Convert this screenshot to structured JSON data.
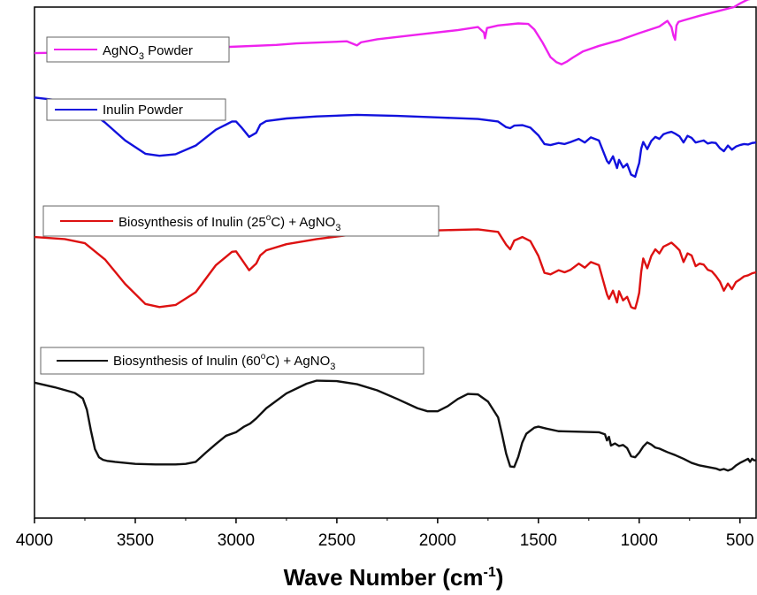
{
  "chart_data": {
    "type": "line",
    "xlabel": "Wave Number (cm-1)",
    "xlabel_main": "Wave Number (cm",
    "xlabel_sup": "-1",
    "xlabel_close": ")",
    "xlim": [
      4000,
      420
    ],
    "x_reversed": true,
    "y_ticks_shown": false,
    "xticks": [
      4000,
      3500,
      3000,
      2500,
      2000,
      1500,
      1000,
      500
    ],
    "xtick_labels": [
      "4000",
      "3500",
      "3000",
      "2500",
      "2000",
      "1500",
      "1000",
      "500"
    ],
    "ylim": [
      0,
      100
    ],
    "grid": false,
    "legend_placement": "each label boxed at left above its curve",
    "series": [
      {
        "name": "AgNO3 Powder",
        "legend": {
          "main": "AgNO",
          "sub": "3",
          "rest": " Powder"
        },
        "color": "#ee22ee",
        "x": [
          4000,
          3700,
          3400,
          3100,
          2800,
          2700,
          2450,
          2400,
          2380,
          2300,
          2100,
          1900,
          1800,
          1770,
          1765,
          1755,
          1700,
          1600,
          1550,
          1520,
          1480,
          1440,
          1410,
          1385,
          1360,
          1330,
          1280,
          1200,
          1100,
          1000,
          900,
          860,
          840,
          830,
          822,
          815,
          805,
          780,
          700,
          600,
          530,
          500,
          460,
          420
        ],
        "y": [
          91.0,
          91.2,
          91.6,
          92.1,
          92.6,
          92.9,
          93.3,
          92.5,
          93.1,
          93.7,
          94.6,
          95.5,
          96.1,
          95.0,
          93.9,
          95.9,
          96.4,
          96.8,
          96.7,
          95.6,
          93.1,
          90.2,
          89.2,
          88.8,
          89.3,
          90.1,
          91.3,
          92.4,
          93.5,
          94.9,
          96.2,
          97.3,
          96.1,
          94.4,
          93.6,
          96.4,
          97.1,
          97.4,
          98.3,
          99.3,
          100.0,
          100.7,
          101.5,
          101.8
        ]
      },
      {
        "name": "Inulin Powder",
        "legend": {
          "main": "Inulin Powder",
          "sub": "",
          "rest": ""
        },
        "color": "#1111dd",
        "x": [
          4000,
          3850,
          3750,
          3650,
          3550,
          3450,
          3380,
          3300,
          3200,
          3100,
          3020,
          3000,
          2970,
          2935,
          2900,
          2880,
          2850,
          2750,
          2600,
          2400,
          2200,
          2000,
          1800,
          1700,
          1660,
          1640,
          1620,
          1580,
          1540,
          1500,
          1470,
          1440,
          1400,
          1370,
          1340,
          1300,
          1270,
          1240,
          1200,
          1160,
          1150,
          1130,
          1110,
          1100,
          1080,
          1060,
          1040,
          1030,
          1020,
          1010,
          1000,
          990,
          980,
          960,
          940,
          920,
          900,
          880,
          860,
          840,
          820,
          800,
          780,
          760,
          740,
          720,
          700,
          680,
          660,
          640,
          620,
          600,
          580,
          560,
          540,
          520,
          500,
          480,
          460,
          440,
          420
        ],
        "y": [
          82.3,
          81.6,
          80.3,
          77.4,
          73.9,
          71.3,
          70.9,
          71.2,
          72.9,
          76.0,
          77.6,
          77.6,
          76.3,
          74.6,
          75.4,
          77.0,
          77.7,
          78.2,
          78.6,
          78.9,
          78.7,
          78.4,
          78.1,
          77.6,
          76.5,
          76.3,
          76.8,
          76.9,
          76.4,
          74.9,
          73.2,
          73.0,
          73.4,
          73.2,
          73.6,
          74.2,
          73.5,
          74.5,
          73.9,
          69.9,
          69.4,
          70.8,
          68.5,
          70.1,
          68.6,
          69.3,
          67.2,
          67.0,
          66.8,
          68.2,
          69.5,
          72.3,
          73.6,
          72.2,
          73.8,
          74.6,
          74.2,
          75.1,
          75.4,
          75.6,
          75.2,
          74.7,
          73.5,
          74.8,
          74.4,
          73.5,
          73.7,
          73.9,
          73.3,
          73.5,
          73.4,
          72.4,
          71.8,
          72.9,
          72.1,
          72.7,
          73.0,
          73.2,
          73.1,
          73.4,
          73.5
        ]
      },
      {
        "name": "Biosynthesis of Inulin (25°C) + AgNO3",
        "legend": {
          "main": "Biosynthesis of Inulin (25",
          "sup": "o",
          "after_sup": "C) + AgNO",
          "sub": "3"
        },
        "color": "#dd1111",
        "x": [
          4000,
          3850,
          3750,
          3650,
          3550,
          3450,
          3380,
          3300,
          3200,
          3100,
          3020,
          3000,
          2970,
          2935,
          2900,
          2880,
          2850,
          2750,
          2600,
          2400,
          2200,
          2000,
          1800,
          1700,
          1660,
          1640,
          1620,
          1580,
          1540,
          1500,
          1470,
          1440,
          1400,
          1370,
          1340,
          1300,
          1270,
          1240,
          1200,
          1160,
          1150,
          1130,
          1110,
          1100,
          1080,
          1060,
          1040,
          1030,
          1020,
          1010,
          1000,
          990,
          980,
          960,
          940,
          920,
          900,
          880,
          860,
          840,
          820,
          800,
          780,
          760,
          740,
          720,
          700,
          680,
          660,
          640,
          620,
          600,
          580,
          560,
          540,
          520,
          500,
          480,
          460,
          440,
          420
        ],
        "y": [
          55.0,
          54.6,
          53.8,
          50.6,
          45.8,
          41.9,
          41.3,
          41.7,
          44.2,
          49.5,
          52.1,
          52.2,
          50.5,
          48.5,
          49.8,
          51.4,
          52.4,
          53.6,
          54.6,
          55.6,
          56.1,
          56.3,
          56.5,
          56.0,
          53.5,
          52.6,
          54.3,
          55.0,
          54.2,
          51.3,
          48.0,
          47.7,
          48.5,
          48.1,
          48.6,
          49.8,
          49.0,
          50.1,
          49.5,
          43.8,
          42.9,
          44.5,
          42.2,
          44.4,
          42.6,
          43.3,
          41.3,
          41.1,
          41.0,
          42.4,
          44.1,
          48.2,
          50.8,
          48.9,
          51.3,
          52.6,
          51.8,
          53.1,
          53.5,
          53.9,
          53.2,
          52.4,
          50.1,
          51.8,
          51.4,
          49.3,
          49.8,
          49.6,
          48.6,
          48.3,
          47.4,
          46.3,
          44.5,
          45.9,
          44.8,
          46.2,
          46.7,
          47.3,
          47.5,
          47.9,
          48.1
        ]
      },
      {
        "name": "Biosynthesis of Inulin (60°C) + AgNO3",
        "legend": {
          "main": "Biosynthesis of Inulin (60",
          "sup": "o",
          "after_sup": "C) + AgNO",
          "sub": "3"
        },
        "color": "#111111",
        "x": [
          4000,
          3900,
          3800,
          3760,
          3740,
          3720,
          3700,
          3680,
          3660,
          3640,
          3600,
          3500,
          3400,
          3300,
          3250,
          3200,
          3150,
          3100,
          3050,
          3000,
          2960,
          2930,
          2900,
          2850,
          2750,
          2650,
          2600,
          2500,
          2400,
          2300,
          2200,
          2100,
          2050,
          2000,
          1950,
          1900,
          1850,
          1800,
          1750,
          1700,
          1680,
          1660,
          1640,
          1620,
          1600,
          1580,
          1560,
          1520,
          1500,
          1460,
          1400,
          1300,
          1200,
          1170,
          1160,
          1150,
          1140,
          1120,
          1100,
          1080,
          1060,
          1040,
          1020,
          1000,
          980,
          960,
          940,
          920,
          900,
          860,
          820,
          780,
          740,
          700,
          660,
          620,
          600,
          580,
          560,
          540,
          520,
          500,
          480,
          460,
          450,
          440,
          430,
          420
        ],
        "y": [
          26.5,
          25.6,
          24.5,
          23.4,
          21.2,
          17.1,
          13.5,
          11.9,
          11.4,
          11.2,
          11.0,
          10.6,
          10.5,
          10.5,
          10.6,
          11.0,
          12.8,
          14.5,
          16.1,
          16.8,
          17.9,
          18.5,
          19.5,
          21.5,
          24.4,
          26.3,
          26.9,
          26.8,
          26.2,
          25.0,
          23.3,
          21.5,
          20.9,
          20.9,
          21.9,
          23.3,
          24.3,
          24.2,
          22.8,
          19.7,
          16.3,
          12.6,
          10.1,
          10.0,
          12.0,
          14.8,
          16.5,
          17.7,
          17.9,
          17.5,
          17.0,
          16.9,
          16.8,
          16.4,
          15.2,
          15.9,
          14.2,
          14.6,
          14.1,
          14.3,
          13.7,
          12.1,
          11.9,
          12.8,
          14.0,
          14.8,
          14.4,
          13.8,
          13.6,
          12.9,
          12.3,
          11.6,
          10.8,
          10.3,
          10.0,
          9.7,
          9.4,
          9.6,
          9.3,
          9.6,
          10.3,
          10.8,
          11.2,
          11.6,
          11.0,
          11.6,
          11.3,
          11.3
        ]
      }
    ]
  }
}
